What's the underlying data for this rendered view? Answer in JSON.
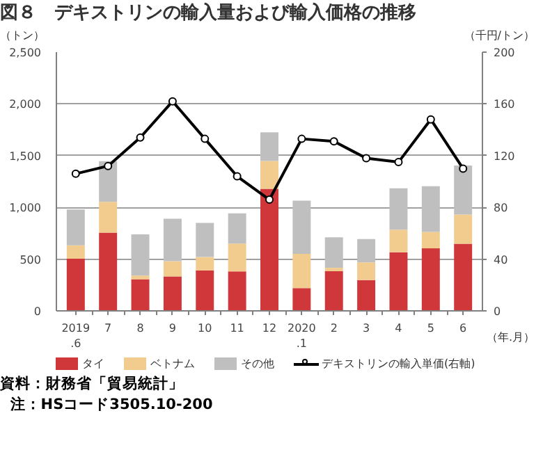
{
  "chart_data": {
    "type": "bar",
    "stacked": true,
    "title": "図８　デキストリンの輸入量および輸入価格の推移",
    "ylabel": "（トン）",
    "y2label": "（千円/トン）",
    "xlabel": "（年.月）",
    "categories": [
      "2019\n.6",
      "7",
      "8",
      "9",
      "10",
      "11",
      "12",
      "2020\n.1",
      "2",
      "3",
      "4",
      "5",
      "6"
    ],
    "series": [
      {
        "name": "タイ",
        "color": "#d0373a",
        "values": [
          504,
          756,
          305,
          333,
          390,
          382,
          1180,
          220,
          384,
          298,
          567,
          604,
          649
        ]
      },
      {
        "name": "ベトナム",
        "color": "#f2cb8f",
        "values": [
          130,
          297,
          36,
          147,
          130,
          268,
          269,
          331,
          32,
          171,
          217,
          159,
          281
        ]
      },
      {
        "name": "その他",
        "color": "#bfbfbf",
        "values": [
          346,
          394,
          399,
          410,
          330,
          293,
          277,
          514,
          294,
          225,
          400,
          441,
          474
        ]
      },
      {
        "name": "デキストリンの輸入単価(右軸)",
        "type": "line",
        "axis": "y2",
        "color": "#000000",
        "marker": "circle",
        "values": [
          106,
          112,
          134,
          162,
          133,
          104,
          86,
          133,
          131,
          118,
          115,
          148,
          110
        ]
      }
    ],
    "ylim": [
      0,
      2500
    ],
    "yticks": [
      0,
      {
        "value": 500,
        "label": "500"
      },
      {
        "value": 1000,
        "label": "1,000"
      },
      {
        "value": 1500,
        "label": "1,500"
      },
      {
        "value": 2000,
        "label": "2,000"
      },
      {
        "value": 2500,
        "label": "2,500"
      }
    ],
    "y2lim": [
      0,
      200
    ],
    "y2ticks": [
      0,
      40,
      80,
      120,
      160,
      200
    ],
    "grid": "y",
    "legend": "bottom",
    "annotations": [
      "資料：財務省「貿易統計」",
      "注：HSコード3505.10-200"
    ]
  }
}
